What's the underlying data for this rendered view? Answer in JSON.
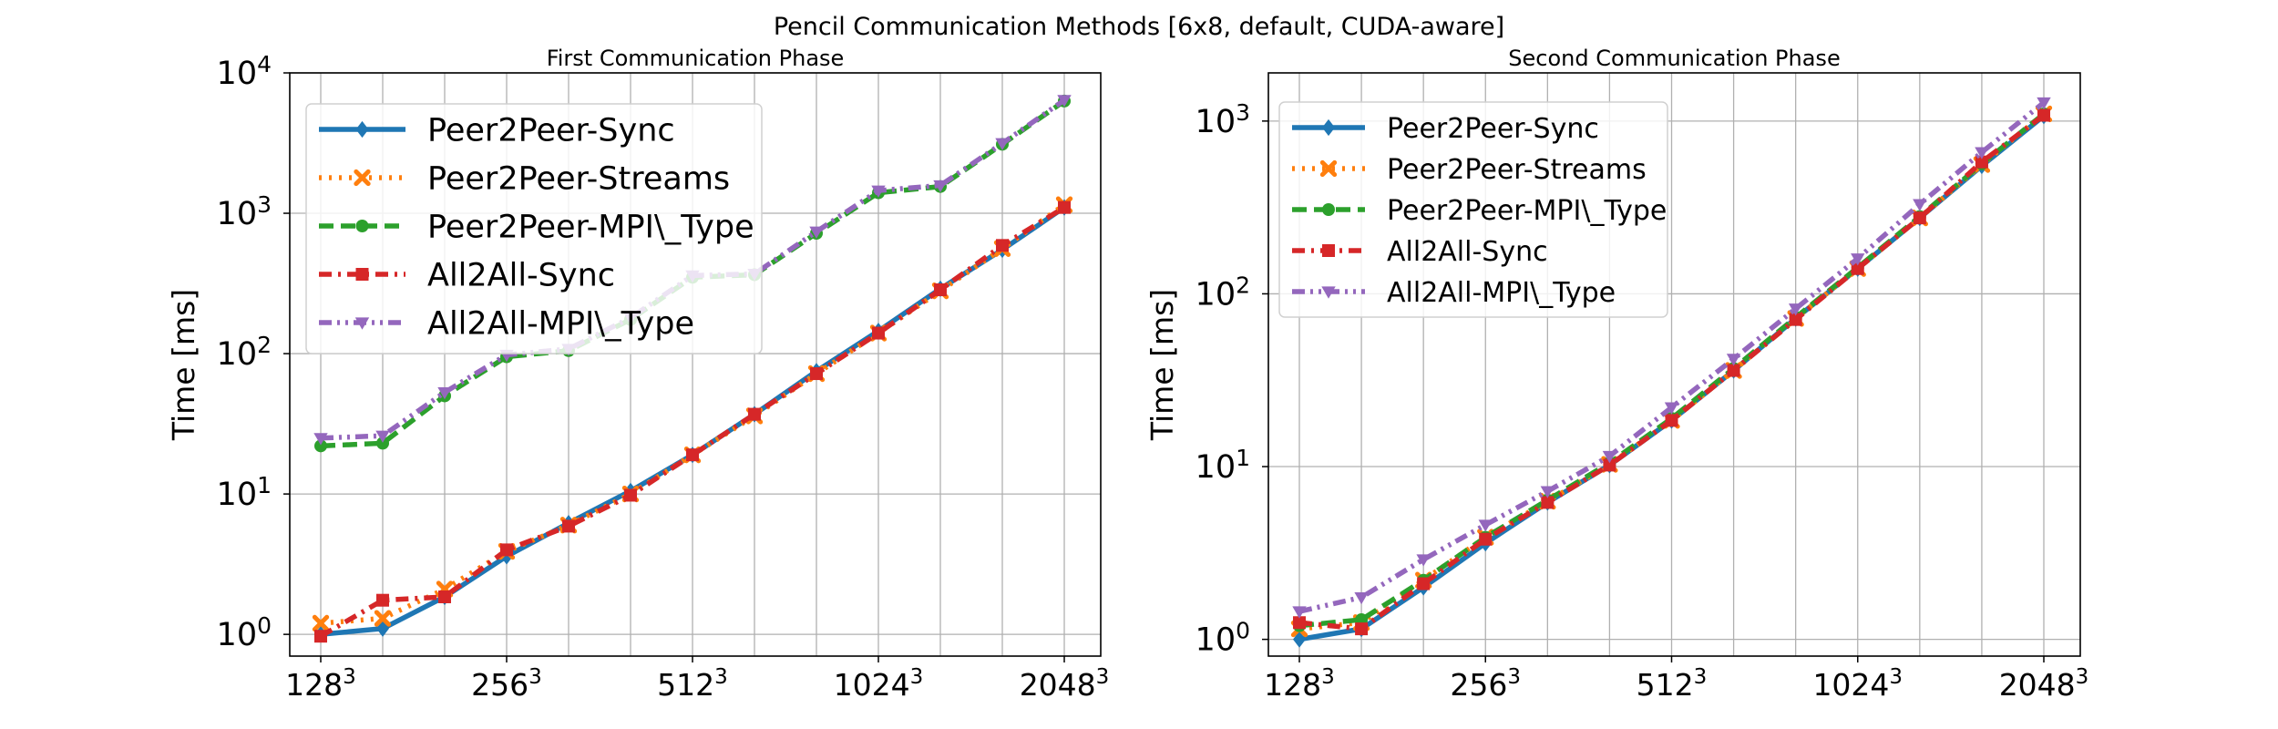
{
  "figure_title": "Pencil Communication Methods [6x8, default, CUDA-aware]",
  "chart_data": [
    {
      "type": "line",
      "title": "First Communication Phase",
      "ylabel": "Time [ms]",
      "xlabel": "",
      "yscale": "log",
      "ylim": [
        0.7,
        10000
      ],
      "xlim": [
        0,
        10.75
      ],
      "grid": true,
      "legend_position": "upper-left",
      "x_ticks": [
        {
          "pos": 0,
          "base": "128",
          "exp": "3"
        },
        {
          "pos": 2,
          "base": "256",
          "exp": "3"
        },
        {
          "pos": 4,
          "base": "512",
          "exp": "3"
        },
        {
          "pos": 6,
          "base": "1024",
          "exp": "3"
        },
        {
          "pos": 8,
          "base": "2048",
          "exp": "3"
        }
      ],
      "y_ticks": [
        {
          "value": 1,
          "base": "10",
          "exp": "0"
        },
        {
          "value": 10,
          "base": "10",
          "exp": "1"
        },
        {
          "value": 100,
          "base": "10",
          "exp": "2"
        },
        {
          "value": 1000,
          "base": "10",
          "exp": "3"
        },
        {
          "value": 10000,
          "base": "10",
          "exp": "4"
        }
      ],
      "x": [
        0,
        1,
        2,
        3,
        4,
        5,
        6,
        7,
        8,
        9,
        10,
        11,
        12
      ],
      "series": [
        {
          "name": "Peer2Peer-Sync",
          "color": "#1f77b4",
          "dash": "solid",
          "marker": "diamond",
          "values": [
            1.0,
            1.1,
            1.85,
            3.6,
            6.2,
            10.5,
            19,
            37,
            75,
            145,
            290,
            550,
            1100
          ]
        },
        {
          "name": "Peer2Peer-Streams",
          "color": "#ff7f0e",
          "dash": "dotted",
          "marker": "x",
          "values": [
            1.2,
            1.3,
            2.1,
            3.9,
            6.0,
            10,
            19,
            36,
            72,
            140,
            280,
            560,
            1150
          ]
        },
        {
          "name": "Peer2Peer-MPI\\_Type",
          "color": "#2ca02c",
          "dash": "dashed",
          "marker": "circle",
          "values": [
            22,
            23,
            50,
            95,
            105,
            175,
            350,
            365,
            720,
            1400,
            1550,
            3100,
            6300
          ]
        },
        {
          "name": "All2All-Sync",
          "color": "#d62728",
          "dash": "dashdot",
          "marker": "square",
          "values": [
            0.97,
            1.75,
            1.85,
            4.0,
            5.9,
            9.8,
            19,
            37,
            72,
            140,
            285,
            590,
            1100
          ]
        },
        {
          "name": "All2All-MPI\\_Type",
          "color": "#9467bd",
          "dash": "dashdotdot",
          "marker": "triangle-down",
          "values": [
            25,
            26,
            53,
            98,
            108,
            180,
            360,
            370,
            740,
            1450,
            1580,
            3150,
            6400
          ]
        }
      ]
    },
    {
      "type": "line",
      "title": "Second Communication Phase",
      "ylabel": "Time [ms]",
      "xlabel": "",
      "yscale": "log",
      "ylim": [
        0.8,
        1900
      ],
      "xlim": [
        0,
        10.75
      ],
      "grid": true,
      "legend_position": "upper-left",
      "x_ticks": [
        {
          "pos": 0,
          "base": "128",
          "exp": "3"
        },
        {
          "pos": 2,
          "base": "256",
          "exp": "3"
        },
        {
          "pos": 4,
          "base": "512",
          "exp": "3"
        },
        {
          "pos": 6,
          "base": "1024",
          "exp": "3"
        },
        {
          "pos": 8,
          "base": "2048",
          "exp": "3"
        }
      ],
      "y_ticks": [
        {
          "value": 1,
          "base": "10",
          "exp": "0"
        },
        {
          "value": 10,
          "base": "10",
          "exp": "1"
        },
        {
          "value": 100,
          "base": "10",
          "exp": "2"
        },
        {
          "value": 1000,
          "base": "10",
          "exp": "3"
        }
      ],
      "x": [
        0,
        1,
        2,
        3,
        4,
        5,
        6,
        7,
        8,
        9,
        10,
        11,
        12
      ],
      "series": [
        {
          "name": "Peer2Peer-Sync",
          "color": "#1f77b4",
          "dash": "solid",
          "marker": "diamond",
          "values": [
            1.0,
            1.15,
            2.0,
            3.6,
            6.2,
            10.2,
            18.5,
            36,
            72,
            140,
            275,
            550,
            1070
          ]
        },
        {
          "name": "Peer2Peer-Streams",
          "color": "#ff7f0e",
          "dash": "dotted",
          "marker": "x",
          "values": [
            1.15,
            1.25,
            2.2,
            3.9,
            6.3,
            10.3,
            18.5,
            36,
            72,
            140,
            275,
            560,
            1100
          ]
        },
        {
          "name": "Peer2Peer-MPI\\_Type",
          "color": "#2ca02c",
          "dash": "dashed",
          "marker": "circle",
          "values": [
            1.2,
            1.3,
            2.2,
            3.9,
            6.4,
            10.5,
            19,
            37,
            73,
            142,
            280,
            565,
            1100
          ]
        },
        {
          "name": "All2All-Sync",
          "color": "#d62728",
          "dash": "dashdot",
          "marker": "square",
          "values": [
            1.25,
            1.15,
            2.1,
            3.8,
            6.2,
            10.2,
            18.5,
            36,
            71,
            140,
            275,
            580,
            1080
          ]
        },
        {
          "name": "All2All-MPI\\_Type",
          "color": "#9467bd",
          "dash": "dashdotdot",
          "marker": "triangle-down",
          "values": [
            1.45,
            1.75,
            2.9,
            4.6,
            7.2,
            11.5,
            22,
            42,
            82,
            160,
            330,
            660,
            1280
          ]
        }
      ]
    }
  ]
}
